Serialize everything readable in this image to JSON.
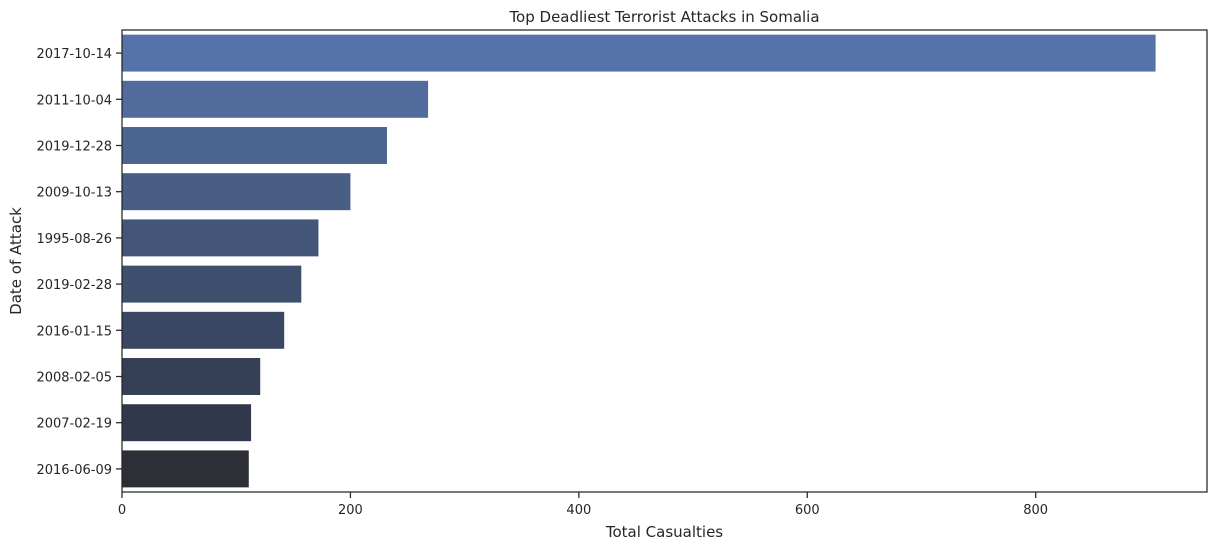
{
  "chart_data": {
    "type": "bar",
    "orientation": "horizontal",
    "title": "Top Deadliest Terrorist Attacks in Somalia",
    "xlabel": "Total Casualties",
    "ylabel": "Date of Attack",
    "xlim": [
      0,
      950
    ],
    "xticks": [
      0,
      200,
      400,
      600,
      800
    ],
    "grid": false,
    "categories": [
      "2017-10-14",
      "2011-10-04",
      "2019-12-28",
      "2009-10-13",
      "1995-08-26",
      "2019-02-28",
      "2016-01-15",
      "2008-02-05",
      "2007-02-19",
      "2016-06-09"
    ],
    "values": [
      905,
      268,
      232,
      200,
      172,
      157,
      142,
      121,
      113,
      111
    ],
    "colors": [
      "#5573a8",
      "#516c9c",
      "#4c6590",
      "#485e85",
      "#435679",
      "#3f4f6e",
      "#3a4762",
      "#353f56",
      "#31384b",
      "#2c2f36"
    ]
  }
}
